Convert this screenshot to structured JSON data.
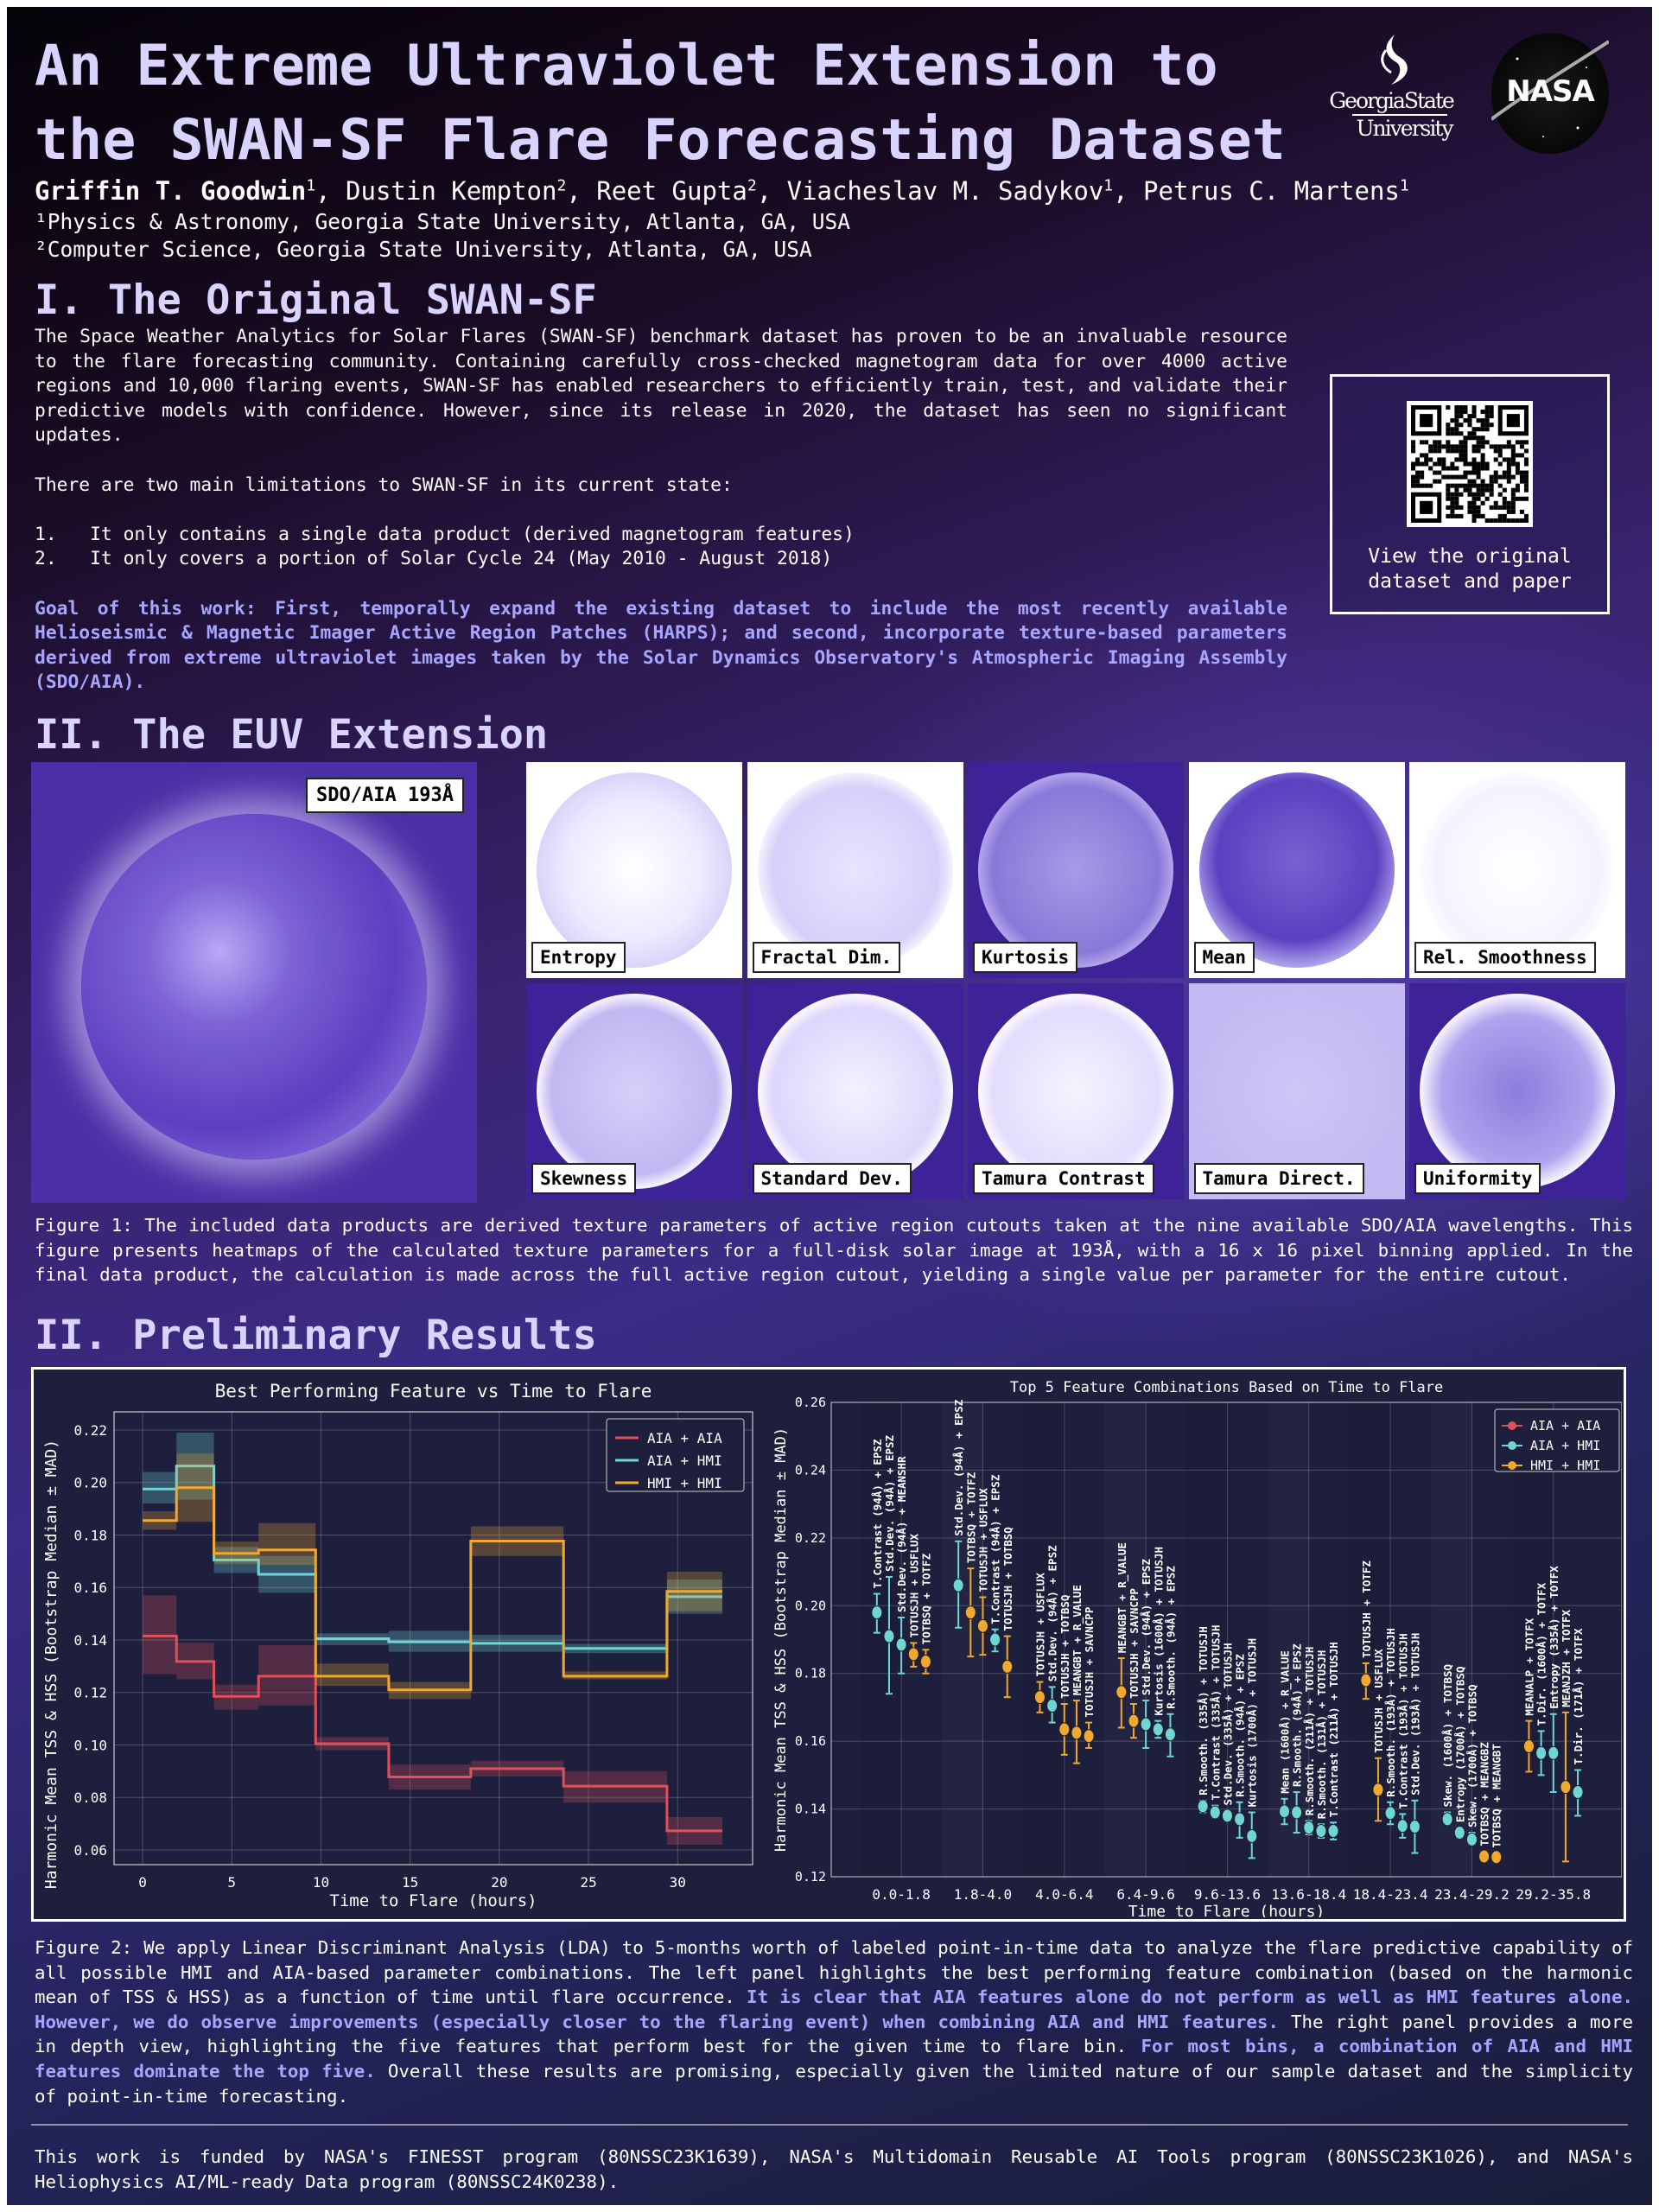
{
  "header": {
    "title_line1": "An Extreme Ultraviolet Extension to",
    "title_line2": "the SWAN-SF Flare Forecasting Dataset",
    "authors": [
      {
        "name": "Griffin T. Goodwin",
        "aff": "1"
      },
      {
        "name": "Dustin Kempton",
        "aff": "2"
      },
      {
        "name": "Reet Gupta",
        "aff": "2"
      },
      {
        "name": "Viacheslav M. Sadykov",
        "aff": "1"
      },
      {
        "name": "Petrus C. Martens",
        "aff": "1"
      }
    ],
    "affiliations": [
      "¹Physics & Astronomy, Georgia State University, Atlanta, GA, USA",
      "²Computer Science, Georgia State University, Atlanta, GA, USA"
    ],
    "logos": {
      "gsu_line1": "GeorgiaState",
      "gsu_line2": "University",
      "nasa": "NASA"
    }
  },
  "section1": {
    "heading": "I. The Original SWAN-SF",
    "para1": "The Space Weather Analytics for Solar Flares (SWAN-SF) benchmark dataset has proven to be an invaluable resource to the flare forecasting community. Containing carefully cross-checked magnetogram data for over 4000 active regions and 10,000 flaring events, SWAN-SF has enabled researchers to efficiently train, test, and validate their predictive models with confidence. However, since its release in 2020, the dataset has seen no significant updates.",
    "para2": "There are two main limitations to SWAN-SF in its current state:",
    "limitations": [
      "1.   It only contains a single data product (derived magnetogram features)",
      "2.   It only covers a portion of Solar Cycle 24 (May 2010 - August 2018)"
    ],
    "goal": "Goal of this work: First, temporally expand the existing dataset to include the most recently available Helioseismic & Magnetic Imager Active Region Patches (HARPS); and second, incorporate texture-based parameters derived from extreme ultraviolet images taken by the Solar Dynamics Observatory's Atmospheric Imaging Assembly (SDO/AIA).",
    "qr_label": "View the original dataset and paper"
  },
  "section2": {
    "heading": "II. The EUV Extension",
    "sun_label": "SDO/AIA 193Å",
    "tiles": [
      "Entropy",
      "Fractal Dim.",
      "Kurtosis",
      "Mean",
      "Rel. Smoothness",
      "Skewness",
      "Standard Dev.",
      "Tamura Contrast",
      "Tamura Direct.",
      "Uniformity"
    ],
    "caption": "Figure 1: The included data products are derived texture parameters of active region cutouts taken at the nine available SDO/AIA wavelengths. This figure presents heatmaps of the calculated texture parameters for a full-disk solar image at 193Å, with a 16 x 16 pixel binning applied. In the final data product, the calculation is made across the full active region cutout, yielding a single value per parameter for the entire cutout."
  },
  "section3": {
    "heading": "II. Preliminary Results",
    "caption": [
      {
        "text": "Figure 2: We apply Linear Discriminant Analysis (LDA) to 5-months worth of labeled point-in-time data to analyze the flare predictive capability of all possible HMI and AIA-based parameter combinations. The left panel highlights the best performing feature combination (based on the harmonic mean of TSS & HSS) as a function of time until flare occurrence. ",
        "hl": false
      },
      {
        "text": "It is clear that AIA features alone do not perform as well as HMI features alone. However, we do observe improvements (especially closer to the flaring event) when combining AIA and HMI features.",
        "hl": true
      },
      {
        "text": " The right panel provides a more in depth view, highlighting the five features that perform best for the given time to flare bin. ",
        "hl": false
      },
      {
        "text": "For most bins, a combination of AIA and HMI features dominate the top five.",
        "hl": true
      },
      {
        "text": " Overall these results are promising, especially given the limited nature of our sample dataset and the simplicity of point-in-time forecasting.",
        "hl": false
      }
    ]
  },
  "footer": {
    "text": "This work is funded by NASA's FINESST program (80NSSC23K1639), NASA's Multidomain Reusable AI Tools program (80NSSC23K1026), and NASA's Heliophysics AI/ML-ready Data program (80NSSC24K0238)."
  },
  "colors": {
    "aia_aia": "#e0505a",
    "aia_hmi": "#6fd6d8",
    "hmi_hmi": "#f0a830",
    "accent": "#a7a6ff",
    "title": "#d9d3ff",
    "chart_bg": "#1e1f3d"
  },
  "chart_data": [
    {
      "type": "line",
      "step": true,
      "title": "Best Performing Feature vs Time to Flare",
      "xlabel": "Time to Flare (hours)",
      "ylabel": "Harmonic Mean TSS & HSS (Bootstrap Median ± MAD)",
      "xlim": [
        -1.6,
        34.2
      ],
      "ylim": [
        0.0544,
        0.2269
      ],
      "xticks": [
        0,
        5,
        10,
        15,
        20,
        25,
        30
      ],
      "yticks": [
        0.06,
        0.08,
        0.1,
        0.12,
        0.14,
        0.16,
        0.18,
        0.2,
        0.22
      ],
      "grid": true,
      "legend": "top-right",
      "bin_edges": [
        0,
        1.9,
        4.0,
        6.5,
        9.7,
        13.8,
        18.4,
        23.6,
        29.4,
        32.5
      ],
      "series": [
        {
          "name": "AIA + AIA",
          "color": "#e0505a",
          "values": [
            0.1415,
            0.1318,
            0.1185,
            0.1262,
            0.1005,
            0.0878,
            0.091,
            0.0843,
            0.0673
          ],
          "lo": [
            0.127,
            0.125,
            0.1135,
            0.115,
            0.098,
            0.083,
            0.088,
            0.078,
            0.062
          ],
          "hi": [
            0.157,
            0.139,
            0.123,
            0.138,
            0.103,
            0.0925,
            0.094,
            0.09,
            0.0725
          ]
        },
        {
          "name": "AIA + HMI",
          "color": "#6fd6d8",
          "values": [
            0.1975,
            0.2063,
            0.1705,
            0.165,
            0.1405,
            0.1393,
            0.1387,
            0.1368,
            0.1565
          ],
          "lo": [
            0.192,
            0.1935,
            0.1655,
            0.158,
            0.138,
            0.1355,
            0.1355,
            0.135,
            0.15
          ],
          "hi": [
            0.204,
            0.219,
            0.1755,
            0.172,
            0.1425,
            0.1435,
            0.142,
            0.1385,
            0.163
          ]
        },
        {
          "name": "HMI + HMI",
          "color": "#f0a830",
          "values": [
            0.1855,
            0.198,
            0.173,
            0.1743,
            0.1262,
            0.121,
            0.1777,
            0.1262,
            0.1585
          ],
          "lo": [
            0.182,
            0.185,
            0.169,
            0.1685,
            0.1225,
            0.1175,
            0.172,
            0.125,
            0.151
          ],
          "hi": [
            0.189,
            0.211,
            0.1775,
            0.1845,
            0.131,
            0.124,
            0.1833,
            0.128,
            0.166
          ]
        }
      ]
    },
    {
      "type": "scatter",
      "errorbars": true,
      "title": "Top 5 Feature Combinations Based on Time to Flare",
      "xlabel": "Time to Flare (hours)",
      "ylabel": "Harmonic Mean TSS & HSS (Bootstrap Median ± MAD)",
      "ylim": [
        0.12,
        0.26
      ],
      "yticks": [
        0.12,
        0.14,
        0.16,
        0.18,
        0.2,
        0.22,
        0.24,
        0.26
      ],
      "grid": true,
      "legend": "top-right",
      "legend_entries": [
        {
          "name": "AIA + AIA",
          "color": "#e0505a"
        },
        {
          "name": "AIA + HMI",
          "color": "#6fd6d8"
        },
        {
          "name": "HMI + HMI",
          "color": "#f0a830"
        }
      ],
      "categories": [
        "0.0-1.8",
        "1.8-4.0",
        "4.0-6.4",
        "6.4-9.6",
        "9.6-13.6",
        "13.6-18.4",
        "18.4-23.4",
        "23.4-29.2",
        "29.2-35.8"
      ],
      "bins": [
        [
          [
            "AIA + HMI",
            0.198,
            0.192,
            0.2035,
            "T.Contrast (94Å) + EPSZ"
          ],
          [
            "AIA + HMI",
            0.191,
            0.174,
            0.2085,
            "Std.Dev. (94Å) + EPSZ"
          ],
          [
            "AIA + HMI",
            0.1885,
            0.18,
            0.1965,
            "Std.Dev. (94Å) + MEANSHR"
          ],
          [
            "HMI + HMI",
            0.1857,
            0.182,
            0.189,
            "TOTUSJH + USFLUX"
          ],
          [
            "HMI + HMI",
            0.1835,
            0.18,
            0.187,
            "TOTBSQ + TOTFZ"
          ]
        ],
        [
          [
            "AIA + HMI",
            0.206,
            0.1935,
            0.219,
            "Std.Dev. (94Å) + EPSZ"
          ],
          [
            "HMI + HMI",
            0.198,
            0.185,
            0.211,
            "TOTBSQ + TOTFZ"
          ],
          [
            "HMI + HMI",
            0.194,
            0.1855,
            0.2025,
            "TOTUSJH + USFLUX"
          ],
          [
            "AIA + HMI",
            0.19,
            0.1865,
            0.193,
            "T.Contrast (94Å) + EPSZ"
          ],
          [
            "HMI + HMI",
            0.182,
            0.173,
            0.191,
            "TOTUSJH + TOTBSQ"
          ]
        ],
        [
          [
            "HMI + HMI",
            0.173,
            0.1685,
            0.1775,
            "TOTUSJH + USFLUX"
          ],
          [
            "AIA + HMI",
            0.1705,
            0.1655,
            0.176,
            "Std.Dev. (94Å) + EPSZ"
          ],
          [
            "HMI + HMI",
            0.1635,
            0.156,
            0.171,
            "TOTUSJH + TOTBSQ"
          ],
          [
            "HMI + HMI",
            0.1625,
            0.1535,
            0.172,
            "MEANGBT + R_VALUE"
          ],
          [
            "HMI + HMI",
            0.1615,
            0.158,
            0.1655,
            "TOTUSJH + SAVNCPP"
          ]
        ],
        [
          [
            "HMI + HMI",
            0.1745,
            0.164,
            0.1845,
            "MEANGBT + R_VALUE"
          ],
          [
            "HMI + HMI",
            0.166,
            0.161,
            0.171,
            "TOTUSJH + SAVNCPP"
          ],
          [
            "AIA + HMI",
            0.165,
            0.158,
            0.172,
            "Std.Dev. (94Å) + EPSZ"
          ],
          [
            "AIA + HMI",
            0.1635,
            0.161,
            0.166,
            "Kurtosis (1600Å) + TOTUSJH"
          ],
          [
            "AIA + HMI",
            0.162,
            0.1555,
            0.168,
            "R.Smooth. (94Å) + EPSZ"
          ]
        ],
        [
          [
            "AIA + HMI",
            0.1408,
            0.139,
            0.1425,
            "R.Smooth. (335Å) + TOTUSJH"
          ],
          [
            "AIA + HMI",
            0.139,
            0.1375,
            0.141,
            "T.Contrast (335Å) + TOTUSJH"
          ],
          [
            "AIA + HMI",
            0.138,
            0.1365,
            0.1395,
            "Std.Dev. (335Å) + TOTUSJH"
          ],
          [
            "AIA + HMI",
            0.137,
            0.1315,
            0.142,
            "R.Smooth. (94Å) + EPSZ"
          ],
          [
            "AIA + HMI",
            0.132,
            0.1255,
            0.139,
            "Kurtosis (1700Å) + TOTUSJH"
          ]
        ],
        [
          [
            "AIA + HMI",
            0.1393,
            0.1355,
            0.143,
            "Mean (1600Å) + R_VALUE"
          ],
          [
            "AIA + HMI",
            0.139,
            0.133,
            0.145,
            "R.Smooth. (94Å) + EPSZ"
          ],
          [
            "AIA + HMI",
            0.1345,
            0.1325,
            0.1365,
            "R.Smooth. (211Å) + TOTUSJH"
          ],
          [
            "AIA + HMI",
            0.1335,
            0.1315,
            0.1355,
            "R.Smooth. (131Å) + TOTUSJH"
          ],
          [
            "AIA + HMI",
            0.1335,
            0.131,
            0.136,
            "T.Contrast (211Å) + TOTUSJH"
          ]
        ],
        [
          [
            "HMI + HMI",
            0.178,
            0.1725,
            0.183,
            "TOTUSJH + TOTFZ"
          ],
          [
            "HMI + HMI",
            0.1457,
            0.1365,
            0.155,
            "TOTUSJH + USFLUX"
          ],
          [
            "AIA + HMI",
            0.1388,
            0.1355,
            0.142,
            "R.Smooth. (193Å) + TOTUSJH"
          ],
          [
            "AIA + HMI",
            0.135,
            0.1315,
            0.1385,
            "T.Contrast (193Å) + TOTUSJH"
          ],
          [
            "AIA + HMI",
            0.1348,
            0.127,
            0.1425,
            "Std.Dev. (193Å) + TOTUSJH"
          ]
        ],
        [
          [
            "AIA + HMI",
            0.137,
            0.1355,
            0.139,
            "Skew. (1600Å) + TOTBSQ"
          ],
          [
            "AIA + HMI",
            0.133,
            0.1315,
            0.1345,
            "Entropy (1700Å) + TOTBSQ"
          ],
          [
            "AIA + HMI",
            0.131,
            0.1295,
            0.133,
            "Skew. (1700Å) + TOTBSQ"
          ],
          [
            "HMI + HMI",
            0.126,
            0.125,
            0.1275,
            "TOTBSQ + MEANGBZ"
          ],
          [
            "HMI + HMI",
            0.1258,
            0.1245,
            0.127,
            "TOTBSQ + MEANGBT"
          ]
        ],
        [
          [
            "HMI + HMI",
            0.1585,
            0.151,
            0.166,
            "MEANALP + TOTFX"
          ],
          [
            "AIA + HMI",
            0.1565,
            0.15,
            0.163,
            "T.Dir. (1600Å) + TOTFX"
          ],
          [
            "AIA + HMI",
            0.1565,
            0.145,
            0.168,
            "Entropy (335Å) + TOTFX"
          ],
          [
            "HMI + HMI",
            0.1465,
            0.1245,
            0.1685,
            "MEANJZH + TOTFX"
          ],
          [
            "AIA + HMI",
            0.145,
            0.138,
            0.1515,
            "T.Dir. (171Å) + TOTFX"
          ]
        ]
      ]
    }
  ]
}
